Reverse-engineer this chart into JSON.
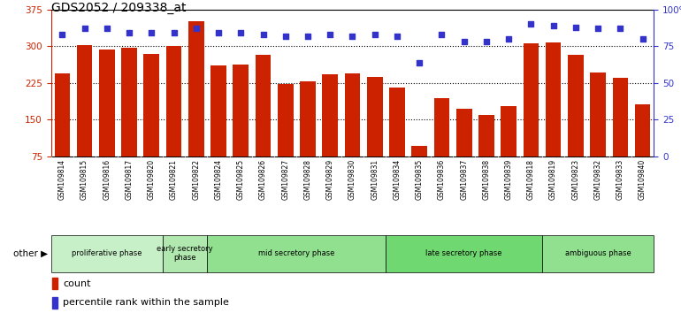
{
  "title": "GDS2052 / 209338_at",
  "samples": [
    "GSM109814",
    "GSM109815",
    "GSM109816",
    "GSM109817",
    "GSM109820",
    "GSM109821",
    "GSM109822",
    "GSM109824",
    "GSM109825",
    "GSM109826",
    "GSM109827",
    "GSM109828",
    "GSM109829",
    "GSM109830",
    "GSM109831",
    "GSM109834",
    "GSM109835",
    "GSM109836",
    "GSM109837",
    "GSM109838",
    "GSM109839",
    "GSM109818",
    "GSM109819",
    "GSM109823",
    "GSM109832",
    "GSM109833",
    "GSM109840"
  ],
  "counts": [
    245,
    302,
    293,
    296,
    284,
    300,
    350,
    260,
    262,
    283,
    222,
    228,
    243,
    244,
    238,
    215,
    97,
    194,
    172,
    160,
    177,
    305,
    307,
    283,
    247,
    235,
    182
  ],
  "percentiles": [
    83,
    87,
    87,
    84,
    84,
    84,
    87,
    84,
    84,
    83,
    82,
    82,
    83,
    82,
    83,
    82,
    64,
    83,
    78,
    78,
    80,
    90,
    89,
    88,
    87,
    87,
    80
  ],
  "phases": [
    {
      "label": "proliferative phase",
      "start": 0,
      "end": 5,
      "color": "#c8f0c8"
    },
    {
      "label": "early secretory\nphase",
      "start": 5,
      "end": 7,
      "color": "#b0e8b0"
    },
    {
      "label": "mid secretory phase",
      "start": 7,
      "end": 15,
      "color": "#90e090"
    },
    {
      "label": "late secretory phase",
      "start": 15,
      "end": 22,
      "color": "#70d870"
    },
    {
      "label": "ambiguous phase",
      "start": 22,
      "end": 27,
      "color": "#90e090"
    }
  ],
  "ylim_left": [
    75,
    375
  ],
  "yticks_left": [
    75,
    150,
    225,
    300,
    375
  ],
  "ylim_right": [
    0,
    100
  ],
  "yticks_right": [
    0,
    25,
    50,
    75,
    100
  ],
  "bar_color": "#cc2200",
  "dot_color": "#3333cc",
  "background_color": "#ffffff",
  "title_fontsize": 10,
  "other_label": "other",
  "legend_count_label": "count",
  "legend_pct_label": "percentile rank within the sample",
  "label_bg_color": "#d8d8d8"
}
